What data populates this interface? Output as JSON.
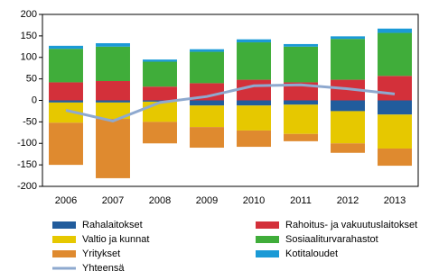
{
  "chart_data": {
    "type": "bar",
    "categories": [
      "2006",
      "2007",
      "2008",
      "2009",
      "2010",
      "2011",
      "2012",
      "2013"
    ],
    "series": [
      {
        "name": "Rahalaitokset",
        "color": "#215c9c",
        "values": [
          -5,
          -5,
          -3,
          -12,
          -12,
          -10,
          -25,
          -33
        ]
      },
      {
        "name": "Rahoitus- ja vakuutuslaitokset",
        "color": "#d3303a",
        "values": [
          42,
          45,
          32,
          40,
          48,
          42,
          48,
          57
        ]
      },
      {
        "name": "Valtio ja kunnat",
        "color": "#e6c800",
        "values": [
          -47,
          -38,
          -47,
          -50,
          -58,
          -68,
          -75,
          -79
        ]
      },
      {
        "name": "Sosiaaliturvarahastot",
        "color": "#40ad3a",
        "values": [
          78,
          80,
          58,
          73,
          87,
          83,
          95,
          100
        ]
      },
      {
        "name": "Yritykset",
        "color": "#df8a2f",
        "values": [
          -98,
          -138,
          -50,
          -48,
          -38,
          -17,
          -22,
          -40
        ]
      },
      {
        "name": "Kotitaloudet",
        "color": "#1b9ad6",
        "values": [
          7,
          8,
          5,
          6,
          7,
          6,
          6,
          10
        ]
      },
      {
        "name": "Yhteensä",
        "color": "#8ea9cf",
        "type": "line",
        "values": [
          -23,
          -48,
          -5,
          9,
          34,
          36,
          27,
          15
        ]
      }
    ],
    "ylim": [
      -200,
      200
    ],
    "yticks": [
      -200,
      -150,
      -100,
      -50,
      0,
      50,
      100,
      150,
      200
    ]
  }
}
